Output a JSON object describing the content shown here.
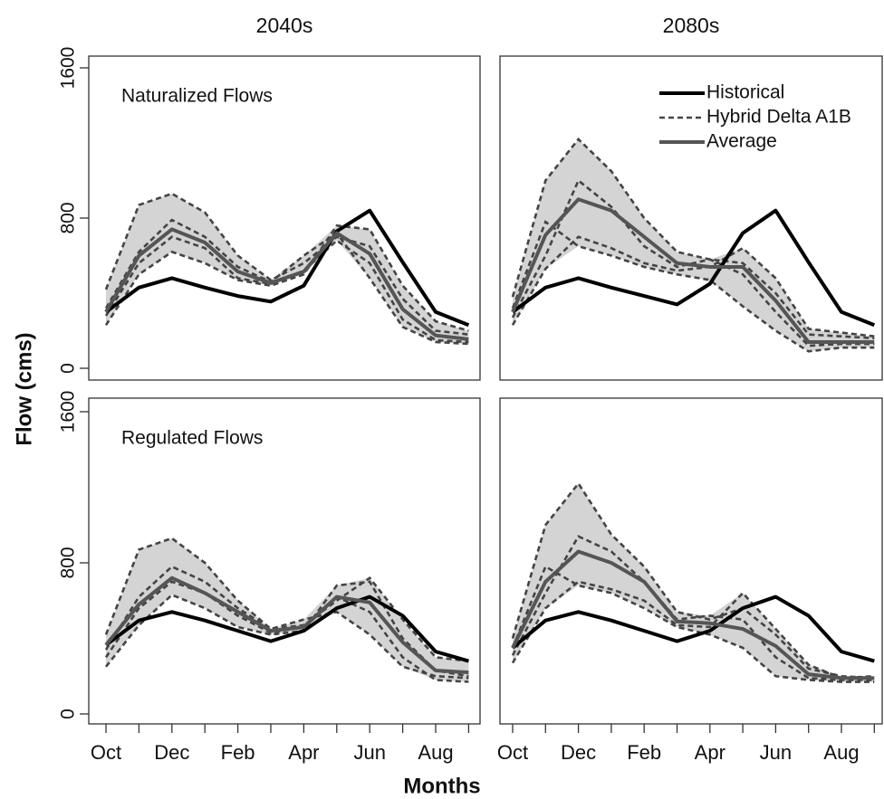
{
  "xlabel": "Months",
  "ylabel": "Flow (cms)",
  "chart_data": [
    {
      "type": "line",
      "title": "2040s",
      "annotation": "Naturalized Flows",
      "ylim": [
        0,
        1600
      ],
      "yticks": [
        0,
        800,
        1600
      ],
      "series": [
        {
          "color": "#000000",
          "values": [
            300,
            430,
            480,
            430,
            385,
            355,
            440,
            730,
            840,
            565,
            300,
            230
          ]
        },
        {
          "color": "#444444",
          "dashed": true,
          "band_color": "#d4d4d4",
          "members": [
            [
              420,
              870,
              930,
              830,
              600,
              470,
              560,
              700,
              650,
              370,
              200,
              180
            ],
            [
              230,
              500,
              620,
              560,
              470,
              440,
              500,
              760,
              740,
              440,
              250,
              200
            ],
            [
              280,
              560,
              700,
              640,
              480,
              450,
              520,
              680,
              560,
              260,
              150,
              140
            ],
            [
              320,
              620,
              790,
              700,
              540,
              460,
              600,
              720,
              480,
              220,
              140,
              130
            ]
          ]
        },
        {
          "color": "#555555",
          "values": [
            300,
            600,
            740,
            670,
            515,
            455,
            515,
            720,
            610,
            315,
            175,
            155
          ]
        }
      ]
    },
    {
      "type": "line",
      "title": "2080s",
      "ylim": [
        0,
        1600
      ],
      "legend": "upper right",
      "series": [
        {
          "name": "Historical",
          "color": "#000000",
          "values": [
            300,
            430,
            480,
            430,
            385,
            340,
            450,
            720,
            840,
            565,
            300,
            230
          ]
        },
        {
          "name": "Hybrid Delta A1B",
          "color": "#444444",
          "dashed": true,
          "band_color": "#d4d4d4",
          "members": [
            [
              380,
              1000,
              1220,
              1050,
              800,
              620,
              580,
              560,
              400,
              180,
              170,
              160
            ],
            [
              230,
              530,
              700,
              640,
              560,
              520,
              540,
              640,
              480,
              210,
              190,
              170
            ],
            [
              270,
              600,
              1000,
              860,
              650,
              540,
              580,
              500,
              300,
              120,
              130,
              130
            ],
            [
              320,
              780,
              650,
              600,
              540,
              500,
              470,
              330,
              200,
              90,
              110,
              110
            ]
          ]
        },
        {
          "name": "Average",
          "color": "#555555",
          "values": [
            300,
            710,
            900,
            840,
            700,
            560,
            540,
            540,
            360,
            140,
            140,
            140
          ]
        }
      ]
    },
    {
      "type": "line",
      "annotation": "Regulated Flows",
      "ylim": [
        0,
        1600
      ],
      "yticks": [
        0,
        800,
        1600
      ],
      "categories": [
        "Oct",
        null,
        "Dec",
        null,
        "Feb",
        null,
        "Apr",
        null,
        "Jun",
        null,
        "Aug",
        null
      ],
      "series": [
        {
          "color": "#000000",
          "values": [
            365,
            495,
            540,
            495,
            440,
            385,
            440,
            560,
            620,
            520,
            330,
            280
          ]
        },
        {
          "color": "#444444",
          "dashed": true,
          "band_color": "#d4d4d4",
          "members": [
            [
              420,
              870,
              930,
              800,
              600,
              450,
              470,
              600,
              720,
              500,
              300,
              280
            ],
            [
              250,
              470,
              630,
              560,
              460,
              420,
              440,
              680,
              700,
              400,
              230,
              200
            ],
            [
              300,
              560,
              700,
              640,
              520,
              430,
              460,
              620,
              540,
              300,
              180,
              170
            ],
            [
              340,
              620,
              780,
              700,
              560,
              450,
              500,
              540,
              420,
              250,
              200,
              190
            ]
          ]
        },
        {
          "color": "#555555",
          "values": [
            365,
            580,
            720,
            640,
            540,
            440,
            460,
            620,
            590,
            380,
            230,
            220
          ]
        }
      ]
    },
    {
      "type": "line",
      "ylim": [
        0,
        1600
      ],
      "categories": [
        "Oct",
        null,
        "Dec",
        null,
        "Feb",
        null,
        "Apr",
        null,
        "Jun",
        null,
        "Aug",
        null
      ],
      "series": [
        {
          "color": "#000000",
          "values": [
            350,
            495,
            540,
            495,
            440,
            385,
            440,
            560,
            620,
            520,
            330,
            280
          ]
        },
        {
          "color": "#444444",
          "dashed": true,
          "band_color": "#d4d4d4",
          "members": [
            [
              400,
              1000,
              1220,
              950,
              780,
              540,
              500,
              560,
              420,
              240,
              200,
              190
            ],
            [
              270,
              560,
              700,
              660,
              600,
              470,
              460,
              640,
              450,
              260,
              190,
              200
            ],
            [
              310,
              640,
              940,
              860,
              700,
              500,
              520,
              500,
              300,
              190,
              180,
              180
            ],
            [
              350,
              780,
              680,
              640,
              560,
              460,
              420,
              350,
              200,
              180,
              170,
              170
            ]
          ]
        },
        {
          "color": "#555555",
          "values": [
            350,
            700,
            860,
            800,
            700,
            490,
            480,
            450,
            360,
            210,
            190,
            190
          ]
        }
      ]
    }
  ]
}
